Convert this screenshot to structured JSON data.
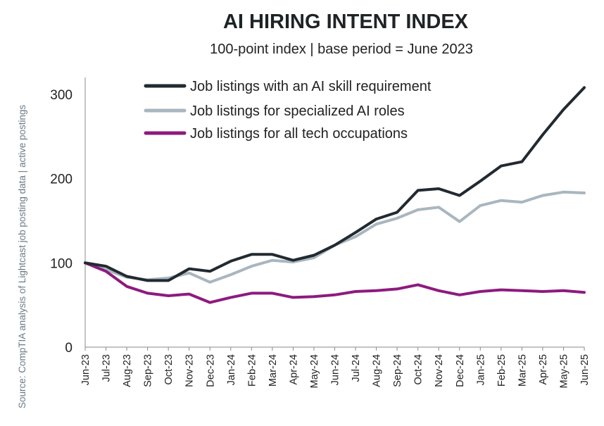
{
  "chart_data": {
    "type": "line",
    "title": "AI HIRING INTENT INDEX",
    "subtitle": "100-point index | base period = June 2023",
    "source": "Source: CompTIA analysis of Lightcast job posting data | active postings",
    "xlabel": "",
    "ylabel": "",
    "ylim": [
      0,
      320
    ],
    "yticks": [
      "0",
      "100",
      "200",
      "300"
    ],
    "ytick_values": [
      0,
      100,
      200,
      300
    ],
    "grid": false,
    "legend_position": "top-center",
    "categories": [
      "Jun-23",
      "Jul-23",
      "Aug-23",
      "Sep-23",
      "Oct-23",
      "Nov-23",
      "Dec-23",
      "Jan-24",
      "Feb-24",
      "Mar-24",
      "Apr-24",
      "May-24",
      "Jun-24",
      "Jul-24",
      "Aug-24",
      "Sep-24",
      "Oct-24",
      "Nov-24",
      "Dec-24",
      "Jan-25",
      "Feb-25",
      "Mar-25",
      "Apr-25",
      "May-25",
      "Jun-25"
    ],
    "series": [
      {
        "name": "Job listings with an AI skill requirement",
        "color": "#222a30",
        "values": [
          100,
          96,
          84,
          79,
          79,
          93,
          90,
          102,
          110,
          110,
          103,
          109,
          121,
          136,
          152,
          160,
          186,
          188,
          180,
          197,
          215,
          220,
          252,
          282,
          308
        ]
      },
      {
        "name": "Job listings for specialized AI roles",
        "color": "#a9b6bf",
        "values": [
          100,
          92,
          83,
          80,
          82,
          88,
          77,
          86,
          96,
          103,
          101,
          106,
          121,
          131,
          146,
          153,
          163,
          166,
          149,
          168,
          174,
          172,
          180,
          184,
          183
        ]
      },
      {
        "name": "Job listings for all tech occupations",
        "color": "#8e1a7e",
        "values": [
          100,
          90,
          72,
          64,
          61,
          63,
          53,
          59,
          64,
          64,
          59,
          60,
          62,
          66,
          67,
          69,
          74,
          67,
          62,
          66,
          68,
          67,
          66,
          67,
          65
        ]
      }
    ]
  }
}
